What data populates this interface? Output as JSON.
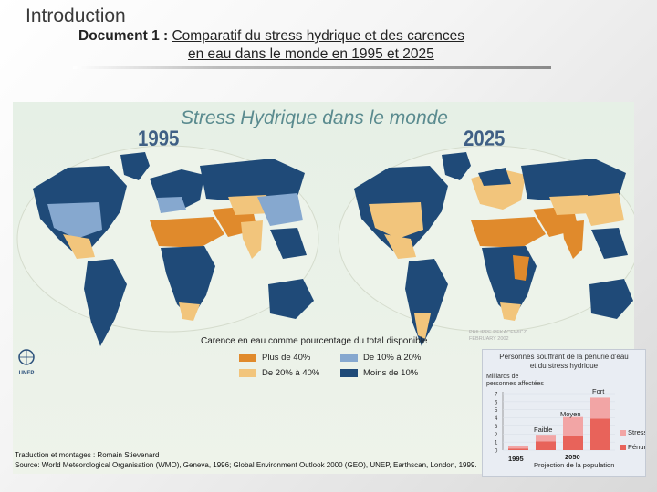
{
  "header": {
    "heading": "Introduction",
    "document_label": "Document 1 : ",
    "document_title_line1": "Comparatif du stress hydrique et des carences",
    "document_title_line2": "en eau dans le monde en 1995 et 2025"
  },
  "map": {
    "title": "Stress Hydrique dans le monde",
    "year_left": "1995",
    "year_right": "2025",
    "legend_title": "Carence en eau comme pourcentage du total disponible",
    "legend": [
      {
        "label": "Plus de 40%",
        "color": "#e08a2c"
      },
      {
        "label": "De 10% à 20%",
        "color": "#86a8cf"
      },
      {
        "label": "De 20% à 40%",
        "color": "#f2c57c"
      },
      {
        "label": "Moins de 10%",
        "color": "#1f4a78"
      }
    ],
    "colors": {
      "ocean": "#e8f0e6",
      "dark": "#1f4a78",
      "light_blue": "#86a8cf",
      "orange": "#e08a2c",
      "pale_orange": "#f2c57c"
    },
    "logo_text": "UNEP",
    "credit_name": "PHILIPPE REKACEWICZ",
    "credit_date": "FEBRUARY 2002"
  },
  "credits": {
    "line1": "Traduction et montages : Romain Stievenard",
    "line2": "Source: World Meteorological Organisation (WMO), Geneva, 1996; Global Environment Outlook 2000 (GEO), UNEP, Earthscan, London, 1999."
  },
  "inset": {
    "title_line1": "Personnes souffrant de la pénurie d'eau",
    "title_line2": "et du stress hydrique",
    "ylabel_line1": "Milliards de",
    "ylabel_line2": "personnes affectées",
    "ticks": [
      "7",
      "6",
      "5",
      "4",
      "3",
      "2",
      "1",
      "0"
    ],
    "label_fort": "Fort",
    "label_moyen": "Moyen",
    "label_faible": "Faible",
    "x_1995": "1995",
    "x_2050": "2050",
    "x_caption": "Projection de la population",
    "legend_stress": "Stress",
    "legend_penurie": "Pénurie",
    "stress_color": "#f2a5a5",
    "penurie_color": "#e8635a"
  },
  "chart_data": {
    "type": "bar",
    "title": "Personnes souffrant de la pénurie d'eau et du stress hydrique",
    "ylabel": "Milliards de personnes affectées",
    "ylim": [
      0,
      7
    ],
    "categories": [
      "1995",
      "2050 Faible",
      "2050 Moyen",
      "2050 Fort"
    ],
    "series": [
      {
        "name": "Pénurie",
        "values": [
          0.2,
          1.1,
          1.8,
          3.9
        ]
      },
      {
        "name": "Stress",
        "values": [
          0.3,
          0.8,
          2.3,
          2.6
        ]
      }
    ]
  }
}
